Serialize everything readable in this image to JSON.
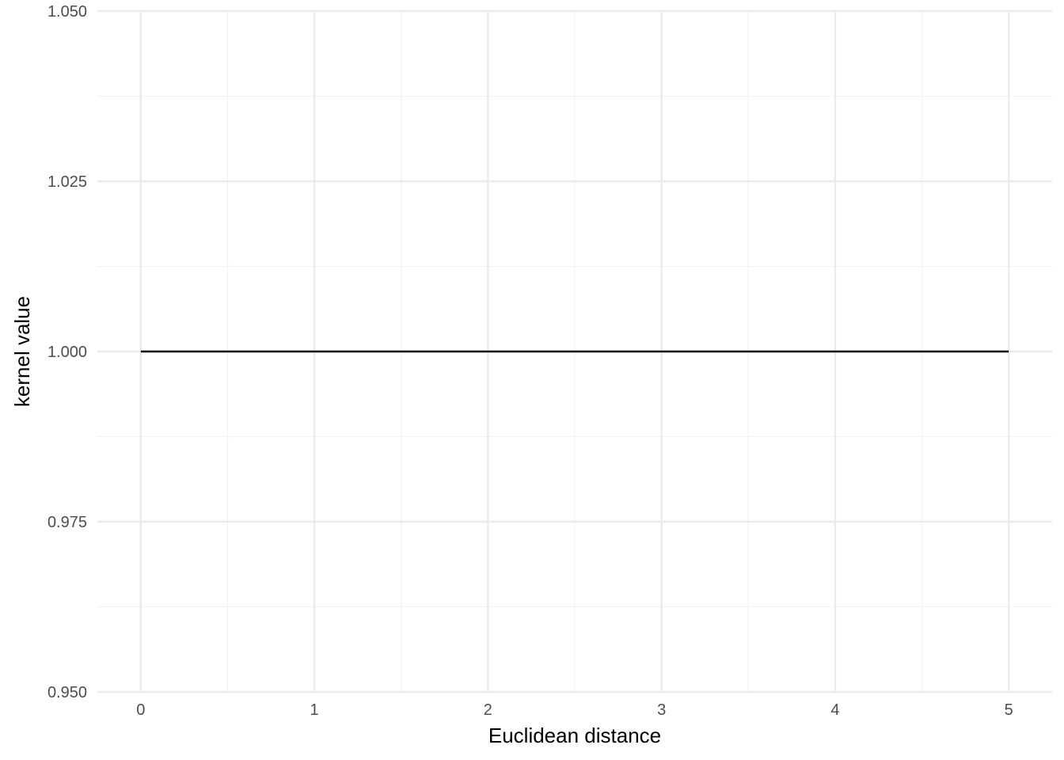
{
  "chart_data": {
    "type": "line",
    "title": "",
    "xlabel": "Euclidean distance",
    "ylabel": "kernel value",
    "xlim": [
      -0.25,
      5.25
    ],
    "ylim": [
      0.95,
      1.05
    ],
    "x_ticks": [
      0,
      1,
      2,
      3,
      4,
      5
    ],
    "x_tick_labels": [
      "0",
      "1",
      "2",
      "3",
      "4",
      "5"
    ],
    "x_minor_ticks": [
      0.5,
      1.5,
      2.5,
      3.5,
      4.5
    ],
    "y_ticks": [
      0.95,
      0.975,
      1.0,
      1.025,
      1.05
    ],
    "y_tick_labels": [
      "0.950",
      "0.975",
      "1.000",
      "1.025",
      "1.050"
    ],
    "y_minor_ticks": [
      0.9625,
      0.9875,
      1.0125,
      1.0375
    ],
    "grid": true,
    "series": [
      {
        "x": [
          0,
          5
        ],
        "y": [
          1.0,
          1.0
        ]
      }
    ],
    "colors": {
      "line": "#000000",
      "grid_major": "#ebebeb",
      "grid_minor": "#f2f2f2"
    }
  }
}
